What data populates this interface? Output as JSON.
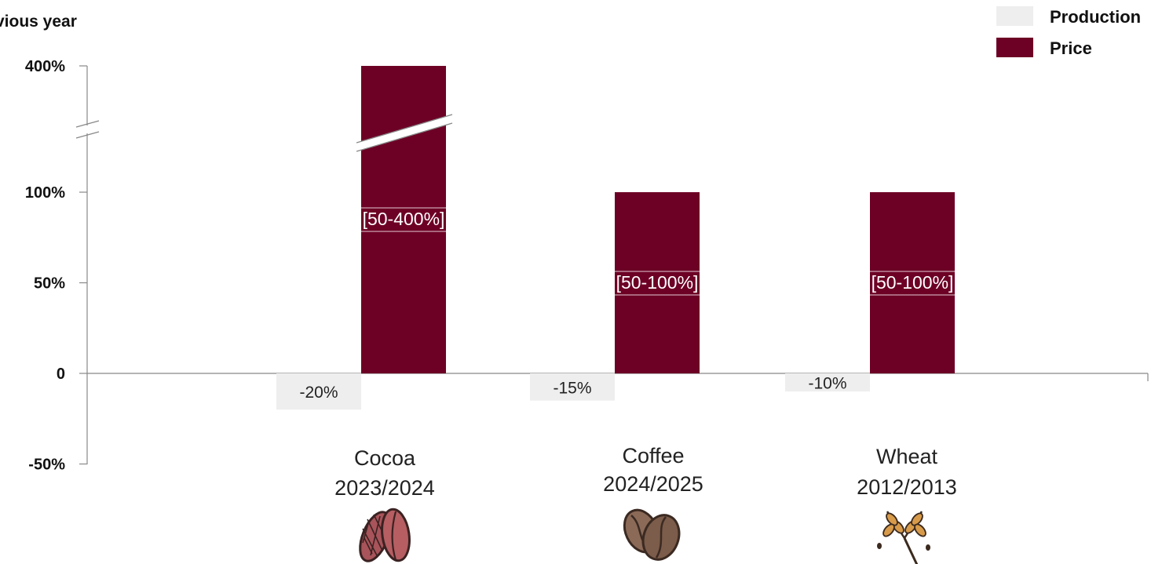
{
  "chart_data": {
    "type": "bar",
    "ylabel": "vious year",
    "y_ticks": [
      "400%",
      "100%",
      "50%",
      "0",
      "-50%"
    ],
    "y_axis_break": true,
    "categories": [
      {
        "name": "Cocoa",
        "period": "2023/2024",
        "icon": "cocoa-beans-icon"
      },
      {
        "name": "Coffee",
        "period": "2024/2025",
        "icon": "coffee-beans-icon"
      },
      {
        "name": "Wheat",
        "period": "2012/2013",
        "icon": "wheat-icon"
      }
    ],
    "series": [
      {
        "name": "Production",
        "values": [
          -20,
          -15,
          -10
        ],
        "labels": [
          "-20%",
          "-15%",
          "-10%"
        ],
        "color": "#eeeeee"
      },
      {
        "name": "Price",
        "values": [
          400,
          100,
          100
        ],
        "labels": [
          "[50-400%]",
          "[50-100%]",
          "[50-100%]"
        ],
        "color": "#6d0025"
      }
    ],
    "legend_position": "top-right",
    "grid": false
  }
}
